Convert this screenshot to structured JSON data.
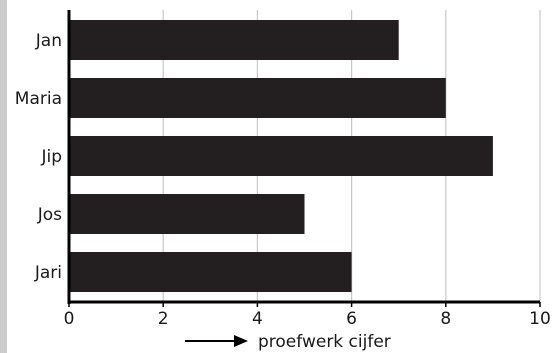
{
  "chart_data": {
    "type": "bar",
    "orientation": "horizontal",
    "title": "",
    "categories": [
      "Jan",
      "Maria",
      "Jip",
      "Jos",
      "Jari"
    ],
    "values": [
      7,
      8,
      9,
      5,
      6
    ],
    "xlabel": "proefwerk cijfer",
    "ylabel": "",
    "xlim": [
      0,
      10
    ],
    "x_ticks": [
      0,
      2,
      4,
      6,
      8,
      10
    ],
    "grid": true,
    "grid_axis": "x",
    "legend": "none",
    "bar_color": "#231f20",
    "grid_color": "#c8c8c8",
    "axis_color": "#000000",
    "xlabel_arrow": "right-arrow"
  }
}
